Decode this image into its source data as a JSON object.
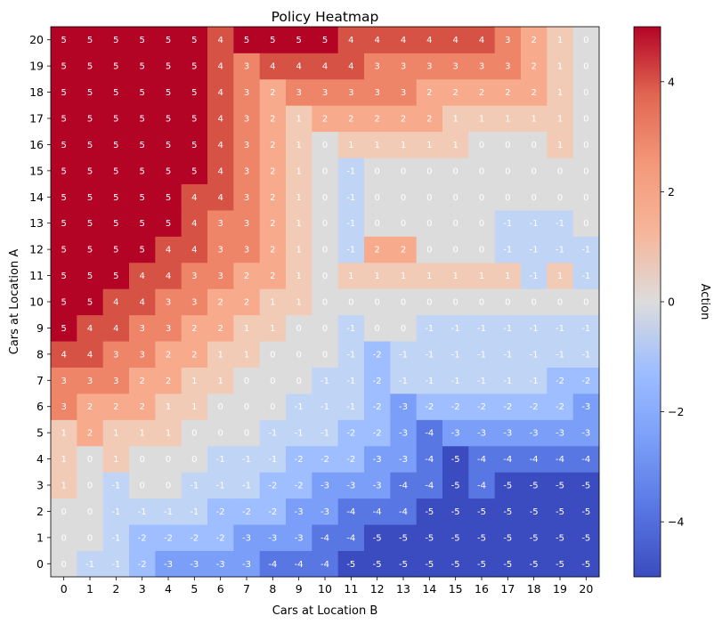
{
  "chart_data": {
    "type": "heatmap",
    "title": "Policy Heatmap",
    "xlabel": "Cars at Location B",
    "ylabel": "Cars at Location A",
    "x_categories": [
      "0",
      "1",
      "2",
      "3",
      "4",
      "5",
      "6",
      "7",
      "8",
      "9",
      "10",
      "11",
      "12",
      "13",
      "14",
      "15",
      "16",
      "17",
      "18",
      "19",
      "20"
    ],
    "y_categories": [
      "0",
      "1",
      "2",
      "3",
      "4",
      "5",
      "6",
      "7",
      "8",
      "9",
      "10",
      "11",
      "12",
      "13",
      "14",
      "15",
      "16",
      "17",
      "18",
      "19",
      "20"
    ],
    "y_order": "ascending-bottom-to-top",
    "colormap": "coolwarm",
    "vmin": -5,
    "vmax": 5,
    "colorbar": {
      "label": "Action",
      "ticks": [
        -4,
        -2,
        0,
        2,
        4
      ],
      "tick_labels": [
        "−4",
        "−2",
        "0",
        "2",
        "4"
      ]
    },
    "grid": false,
    "values": [
      [
        0,
        -1,
        -1,
        -2,
        -3,
        -3,
        -3,
        -3,
        -4,
        -4,
        -4,
        -5,
        -5,
        -5,
        -5,
        -5,
        -5,
        -5,
        -5,
        -5,
        -5
      ],
      [
        0,
        0,
        -1,
        -2,
        -2,
        -2,
        -2,
        -3,
        -3,
        -3,
        -4,
        -4,
        -5,
        -5,
        -5,
        -5,
        -5,
        -5,
        -5,
        -5,
        -5
      ],
      [
        0,
        0,
        -1,
        -1,
        -1,
        -1,
        -2,
        -2,
        -2,
        -3,
        -3,
        -4,
        -4,
        -4,
        -5,
        -5,
        -5,
        -5,
        -5,
        -5,
        -5
      ],
      [
        1,
        0,
        -1,
        0,
        0,
        -1,
        -1,
        -1,
        -2,
        -2,
        -3,
        -3,
        -3,
        -4,
        -4,
        -5,
        -4,
        -5,
        -5,
        -5,
        -5
      ],
      [
        1,
        0,
        1,
        0,
        0,
        0,
        -1,
        -1,
        -1,
        -2,
        -2,
        -2,
        -3,
        -3,
        -4,
        -5,
        -4,
        -4,
        -4,
        -4,
        -4
      ],
      [
        1,
        2,
        1,
        1,
        1,
        0,
        0,
        0,
        -1,
        -1,
        -1,
        -2,
        -2,
        -3,
        -4,
        -3,
        -3,
        -3,
        -3,
        -3,
        -3
      ],
      [
        3,
        2,
        2,
        2,
        1,
        1,
        0,
        0,
        0,
        -1,
        -1,
        -1,
        -2,
        -3,
        -2,
        -2,
        -2,
        -2,
        -2,
        -2,
        -3
      ],
      [
        3,
        3,
        3,
        2,
        2,
        1,
        1,
        0,
        0,
        0,
        -1,
        -1,
        -2,
        -1,
        -1,
        -1,
        -1,
        -1,
        -1,
        -2,
        -2
      ],
      [
        4,
        4,
        3,
        3,
        2,
        2,
        1,
        1,
        0,
        0,
        0,
        -1,
        -2,
        -1,
        -1,
        -1,
        -1,
        -1,
        -1,
        -1,
        -1
      ],
      [
        5,
        4,
        4,
        3,
        3,
        2,
        2,
        1,
        1,
        0,
        0,
        -1,
        0,
        0,
        -1,
        -1,
        -1,
        -1,
        -1,
        -1,
        -1
      ],
      [
        5,
        5,
        4,
        4,
        3,
        3,
        2,
        2,
        1,
        1,
        0,
        0,
        0,
        0,
        0,
        0,
        0,
        0,
        0,
        0,
        0
      ],
      [
        5,
        5,
        5,
        4,
        4,
        3,
        3,
        2,
        2,
        1,
        0,
        1,
        1,
        1,
        1,
        1,
        1,
        1,
        -1,
        1,
        -1
      ],
      [
        5,
        5,
        5,
        5,
        4,
        4,
        3,
        3,
        2,
        1,
        0,
        -1,
        2,
        2,
        0,
        0,
        0,
        -1,
        -1,
        -1,
        -1
      ],
      [
        5,
        5,
        5,
        5,
        5,
        4,
        3,
        3,
        2,
        1,
        0,
        -1,
        0,
        0,
        0,
        0,
        0,
        -1,
        -1,
        -1,
        0
      ],
      [
        5,
        5,
        5,
        5,
        5,
        4,
        4,
        3,
        2,
        1,
        0,
        -1,
        0,
        0,
        0,
        0,
        0,
        0,
        0,
        0,
        0
      ],
      [
        5,
        5,
        5,
        5,
        5,
        5,
        4,
        3,
        2,
        1,
        0,
        -1,
        0,
        0,
        0,
        0,
        0,
        0,
        0,
        0,
        0
      ],
      [
        5,
        5,
        5,
        5,
        5,
        5,
        4,
        3,
        2,
        1,
        0,
        1,
        1,
        1,
        1,
        1,
        0,
        0,
        0,
        1,
        0
      ],
      [
        5,
        5,
        5,
        5,
        5,
        5,
        4,
        3,
        2,
        1,
        2,
        2,
        2,
        2,
        2,
        1,
        1,
        1,
        1,
        1,
        0
      ],
      [
        5,
        5,
        5,
        5,
        5,
        5,
        4,
        3,
        2,
        3,
        3,
        3,
        3,
        3,
        2,
        2,
        2,
        2,
        2,
        1,
        0
      ],
      [
        5,
        5,
        5,
        5,
        5,
        5,
        4,
        3,
        4,
        4,
        4,
        4,
        3,
        3,
        3,
        3,
        3,
        3,
        2,
        1,
        0
      ],
      [
        5,
        5,
        5,
        5,
        5,
        5,
        4,
        5,
        5,
        5,
        5,
        4,
        4,
        4,
        4,
        4,
        4,
        3,
        2,
        1,
        0
      ]
    ]
  }
}
